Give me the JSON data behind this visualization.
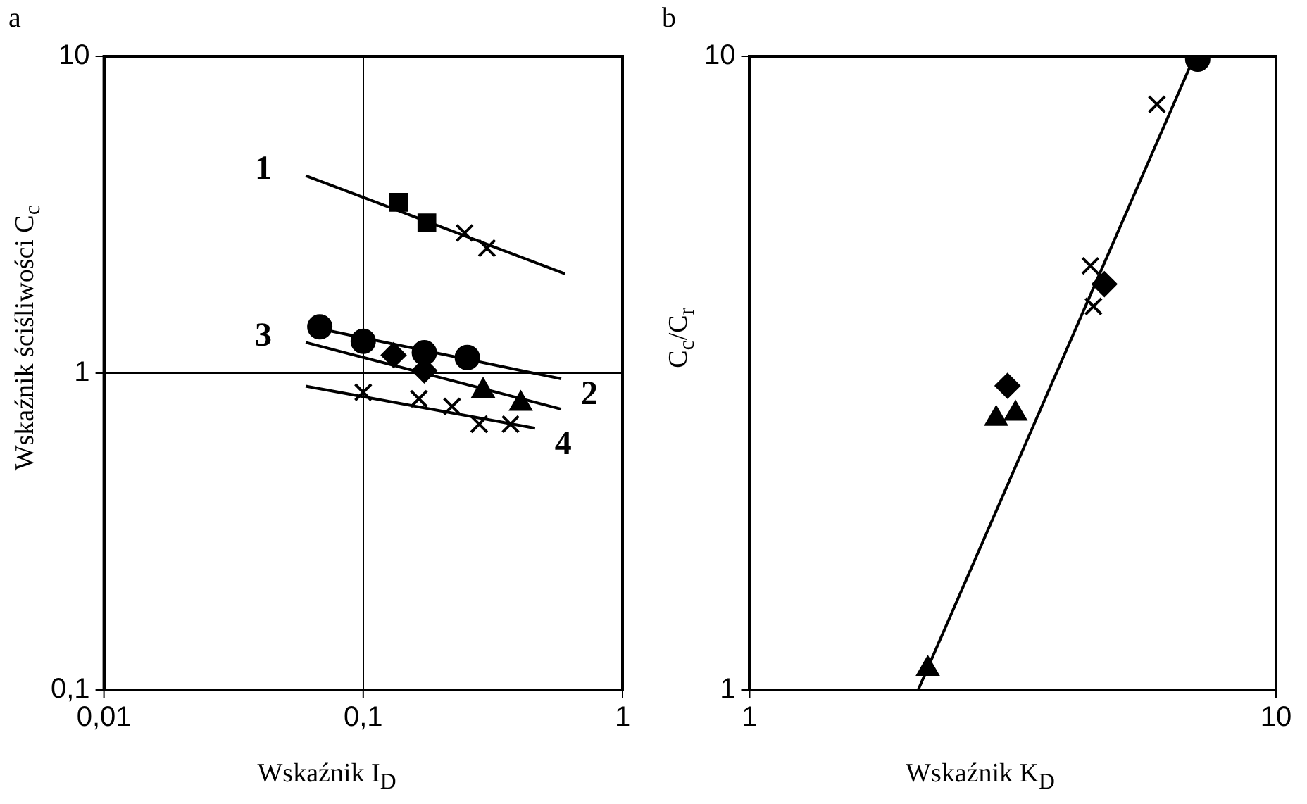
{
  "chart_data": [
    {
      "type": "scatter",
      "title": "a",
      "xlabel": "Wskaźnik I$_{D}$",
      "ylabel": "Wskaźnik ściśliwości C$_{c}$",
      "log": "xy",
      "grid": true,
      "legend": false,
      "xlim": [
        0.01,
        1
      ],
      "ylim": [
        0.1,
        10
      ],
      "xticks": [
        {
          "value": 0.01,
          "label": "0,01"
        },
        {
          "value": 0.1,
          "label": "0,1"
        },
        {
          "value": 1,
          "label": "1"
        }
      ],
      "yticks": [
        {
          "value": 0.1,
          "label": "0,1"
        },
        {
          "value": 1,
          "label": "1"
        },
        {
          "value": 10,
          "label": "10"
        }
      ],
      "series": [
        {
          "type": "line",
          "color": "#000000",
          "marker": "none",
          "x": [
            0.06,
            0.6
          ],
          "values": [
            4.2,
            2.06
          ]
        },
        {
          "type": "line",
          "color": "#000000",
          "marker": "none",
          "x": [
            0.068,
            0.58
          ],
          "values": [
            1.38,
            0.96
          ]
        },
        {
          "type": "line",
          "color": "#000000",
          "marker": "none",
          "x": [
            0.06,
            0.58
          ],
          "values": [
            1.25,
            0.77
          ]
        },
        {
          "type": "line",
          "color": "#000000",
          "marker": "none",
          "x": [
            0.06,
            0.46
          ],
          "values": [
            0.91,
            0.67
          ]
        },
        {
          "color": "#000000",
          "marker": "square",
          "x": [
            0.137,
            0.176
          ],
          "values": [
            3.46,
            2.98
          ]
        },
        {
          "color": "#000000",
          "marker": "cross",
          "x": [
            0.246,
            0.3
          ],
          "values": [
            2.77,
            2.48
          ]
        },
        {
          "color": "#000000",
          "marker": "circle",
          "x": [
            0.068,
            0.1,
            0.172,
            0.252
          ],
          "values": [
            1.4,
            1.26,
            1.16,
            1.12
          ]
        },
        {
          "color": "#000000",
          "marker": "diamond",
          "x": [
            0.131,
            0.172
          ],
          "values": [
            1.14,
            1.02
          ]
        },
        {
          "color": "#000000",
          "marker": "triangle",
          "x": [
            0.29,
            0.405
          ],
          "values": [
            0.88,
            0.8
          ]
        },
        {
          "color": "#000000",
          "marker": "cross",
          "x": [
            0.1,
            0.164,
            0.22,
            0.28,
            0.37
          ],
          "values": [
            0.87,
            0.83,
            0.785,
            0.69,
            0.69
          ]
        }
      ],
      "annotations": [
        {
          "text": "1",
          "x": 0.06,
          "y": 4.2
        },
        {
          "text": "2",
          "x": 0.58,
          "y": 0.96
        },
        {
          "text": "3",
          "x": 0.06,
          "y": 1.25
        },
        {
          "text": "4",
          "x": 0.46,
          "y": 0.67
        }
      ]
    },
    {
      "type": "scatter",
      "title": "b",
      "xlabel": "Wskaźnik K$_{D}$",
      "ylabel": "C$_{c}$/C$_{r}$",
      "log": "xy",
      "grid": false,
      "legend": false,
      "xlim": [
        1,
        10
      ],
      "ylim": [
        1,
        10
      ],
      "xticks": [
        {
          "value": 1,
          "label": "1"
        },
        {
          "value": 10,
          "label": "10"
        }
      ],
      "yticks": [
        {
          "value": 1,
          "label": "1"
        },
        {
          "value": 10,
          "label": "10"
        }
      ],
      "series": [
        {
          "type": "line",
          "color": "#000000",
          "marker": "none",
          "x": [
            2.09,
            7.0
          ],
          "values": [
            1.0,
            10
          ]
        },
        {
          "color": "#000000",
          "marker": "circle",
          "x": [
            7.1
          ],
          "values": [
            9.9
          ]
        },
        {
          "color": "#000000",
          "marker": "cross",
          "x": [
            5.94,
            4.44,
            4.5
          ],
          "values": [
            8.4,
            4.67,
            4.03
          ]
        },
        {
          "color": "#000000",
          "marker": "diamond",
          "x": [
            4.72,
            3.09
          ],
          "values": [
            4.37,
            3.02
          ]
        },
        {
          "color": "#000000",
          "marker": "triangle",
          "x": [
            2.94,
            3.2,
            2.18
          ],
          "values": [
            2.68,
            2.73,
            1.08
          ]
        }
      ]
    }
  ]
}
